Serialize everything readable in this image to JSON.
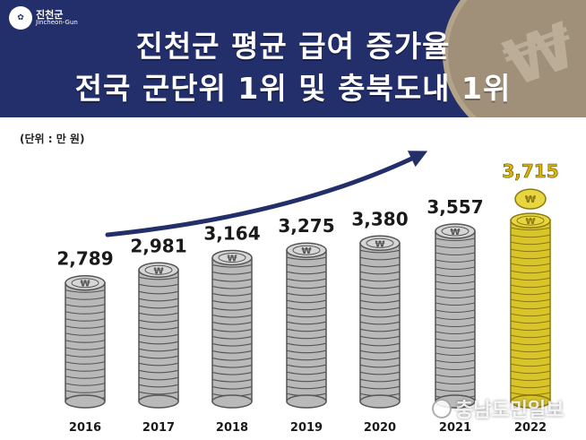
{
  "header": {
    "logo_ko": "진천군",
    "logo_en": "Jincheon-Gun",
    "title_line1": "진천군 평균 급여 증가율",
    "title_line2": "전국 군단위 1위 및 충북도내 1위"
  },
  "unit_label": "(단위 : 만 원)",
  "watermark": "충남도민일보",
  "colors": {
    "header_bg": "#232f6b",
    "coin_silver": "#b9b9b9",
    "coin_gold": "#d9c52a",
    "arrow": "#232f6b",
    "highlight_label": "#e0b400"
  },
  "chart_data": {
    "type": "bar",
    "categories": [
      "2016",
      "2017",
      "2018",
      "2019",
      "2020",
      "2021",
      "2022"
    ],
    "values": [
      2789,
      2981,
      3164,
      3275,
      3380,
      3557,
      3715
    ],
    "value_labels": [
      "2,789",
      "2,981",
      "3,164",
      "3,275",
      "3,380",
      "3,557",
      "3,715"
    ],
    "highlight_index": 6
  }
}
